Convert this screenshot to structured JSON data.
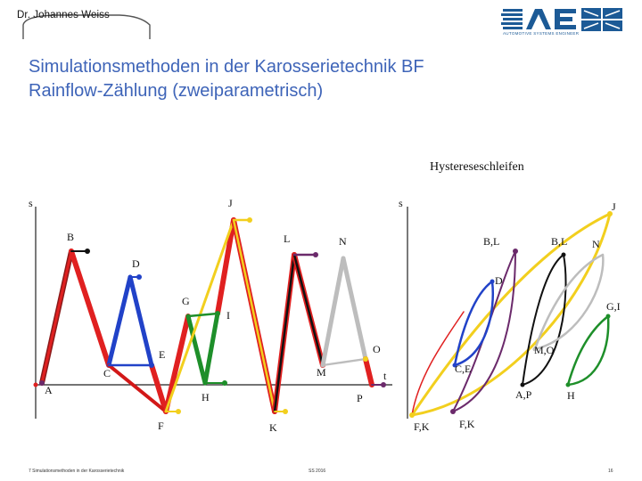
{
  "header": {
    "author_logo_text": "Dr. Johannes Weiss",
    "brand_logo_text": "ASE",
    "brand_logo_subtext": "AUTOMOTIVE SYSTEMS ENGINEER"
  },
  "title": {
    "line1": "Simulationsmethoden in der Karosserietechnik BF",
    "line2": "Rainflow-Zählung (zweiparametrisch)"
  },
  "hysteresis_heading": "Hystereseschleifen",
  "signal_labels": {
    "A": "A",
    "B": "B",
    "C": "C",
    "D": "D",
    "E": "E",
    "F": "F",
    "G": "G",
    "H": "H",
    "I": "I",
    "J": "J",
    "K": "K",
    "L": "L",
    "M": "M",
    "N": "N",
    "O": "O",
    "P": "P"
  },
  "axis_labels": {
    "y_left": "s",
    "y_right": "s",
    "t": "t"
  },
  "loop_labels": {
    "J": "J",
    "BL_left": "B,L",
    "BL_right": "B,L",
    "N": "N",
    "D": "D",
    "GI": "G,I",
    "MO": "M,O",
    "CE": "C,E",
    "AP": "A,P",
    "H": "H",
    "FK_left": "F,K",
    "FK_right": "F,K"
  },
  "colors": {
    "title": "#3e64b8",
    "red": "#e02020",
    "dark_red": "#8b1a1a",
    "gold": "#f2cf1e",
    "blue": "#2142c8",
    "green": "#1e8f2a",
    "purple": "#6b2a6b",
    "gray": "#bdbdbd",
    "black": "#111111"
  },
  "footer": {
    "left": "7 Simulationsmethoden in der Karosserietechnik",
    "center": "SS 2016",
    "right": "16"
  }
}
